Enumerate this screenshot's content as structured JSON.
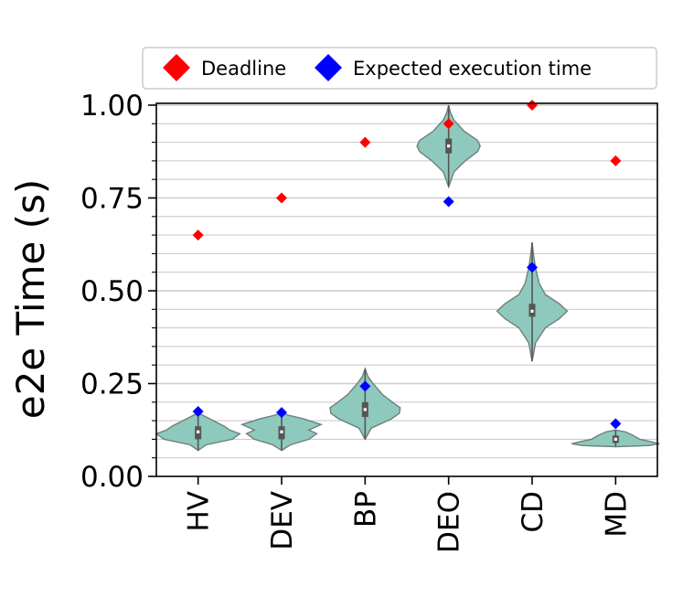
{
  "chart_data": {
    "type": "violin",
    "ylabel": "e2e Time (s)",
    "xlabel": "",
    "ylim": [
      0.0,
      1.0
    ],
    "yticks": [
      "0.00",
      "0.25",
      "0.50",
      "0.75",
      "1.00"
    ],
    "categories": [
      "HV",
      "DEV",
      "BP",
      "DEO",
      "CD",
      "MD"
    ],
    "grid": "horizontal",
    "legend": {
      "placement": "top",
      "entries": [
        {
          "label": "Deadline",
          "color": "#ff0000",
          "marker": "diamond"
        },
        {
          "label": "Expected execution time",
          "color": "#0000ff",
          "marker": "diamond"
        }
      ]
    },
    "series": [
      {
        "name": "Deadline",
        "values": [
          0.65,
          0.75,
          0.9,
          0.95,
          1.0,
          0.85
        ]
      },
      {
        "name": "Expected execution time",
        "values": [
          0.175,
          0.172,
          0.243,
          0.74,
          0.563,
          0.142
        ]
      }
    ],
    "violins": [
      {
        "category": "HV",
        "min": 0.07,
        "q1": 0.1,
        "median": 0.12,
        "q3": 0.135,
        "max": 0.17,
        "profile": [
          [
            0.07,
            0.0
          ],
          [
            0.085,
            0.18
          ],
          [
            0.1,
            0.78
          ],
          [
            0.115,
            0.95
          ],
          [
            0.125,
            0.72
          ],
          [
            0.135,
            0.6
          ],
          [
            0.15,
            0.35
          ],
          [
            0.165,
            0.1
          ],
          [
            0.17,
            0.0
          ]
        ]
      },
      {
        "category": "DEV",
        "min": 0.07,
        "q1": 0.1,
        "median": 0.12,
        "q3": 0.135,
        "max": 0.17,
        "profile": [
          [
            0.07,
            0.0
          ],
          [
            0.085,
            0.2
          ],
          [
            0.1,
            0.62
          ],
          [
            0.115,
            0.8
          ],
          [
            0.125,
            0.62
          ],
          [
            0.14,
            0.9
          ],
          [
            0.155,
            0.5
          ],
          [
            0.165,
            0.15
          ],
          [
            0.17,
            0.0
          ]
        ]
      },
      {
        "category": "BP",
        "min": 0.1,
        "q1": 0.16,
        "median": 0.18,
        "q3": 0.2,
        "max": 0.29,
        "profile": [
          [
            0.1,
            0.0
          ],
          [
            0.13,
            0.14
          ],
          [
            0.155,
            0.6
          ],
          [
            0.17,
            0.78
          ],
          [
            0.185,
            0.8
          ],
          [
            0.2,
            0.62
          ],
          [
            0.22,
            0.4
          ],
          [
            0.25,
            0.18
          ],
          [
            0.27,
            0.06
          ],
          [
            0.29,
            0.0
          ]
        ]
      },
      {
        "category": "DEO",
        "min": 0.78,
        "q1": 0.87,
        "median": 0.89,
        "q3": 0.91,
        "max": 1.0,
        "profile": [
          [
            0.78,
            0.0
          ],
          [
            0.82,
            0.12
          ],
          [
            0.85,
            0.38
          ],
          [
            0.875,
            0.66
          ],
          [
            0.89,
            0.72
          ],
          [
            0.905,
            0.66
          ],
          [
            0.93,
            0.35
          ],
          [
            0.96,
            0.12
          ],
          [
            0.98,
            0.04
          ],
          [
            1.0,
            0.0
          ]
        ]
      },
      {
        "category": "CD",
        "min": 0.31,
        "q1": 0.43,
        "median": 0.445,
        "q3": 0.465,
        "max": 0.63,
        "profile": [
          [
            0.31,
            0.0
          ],
          [
            0.36,
            0.08
          ],
          [
            0.4,
            0.3
          ],
          [
            0.425,
            0.62
          ],
          [
            0.445,
            0.8
          ],
          [
            0.465,
            0.62
          ],
          [
            0.49,
            0.3
          ],
          [
            0.52,
            0.16
          ],
          [
            0.56,
            0.08
          ],
          [
            0.6,
            0.03
          ],
          [
            0.63,
            0.0
          ]
        ]
      },
      {
        "category": "MD",
        "min": 0.08,
        "q1": 0.09,
        "median": 0.1,
        "q3": 0.11,
        "max": 0.125,
        "profile": [
          [
            0.08,
            0.0
          ],
          [
            0.083,
            0.75
          ],
          [
            0.088,
            1.0
          ],
          [
            0.095,
            0.75
          ],
          [
            0.1,
            0.55
          ],
          [
            0.11,
            0.4
          ],
          [
            0.12,
            0.22
          ],
          [
            0.125,
            0.0
          ]
        ]
      }
    ],
    "colors": {
      "violin_fill": "#8ec9bd",
      "violin_edge": "#6f7f7b",
      "box": "#555555",
      "median": "#ffffff",
      "grid": "#cccccc"
    }
  }
}
